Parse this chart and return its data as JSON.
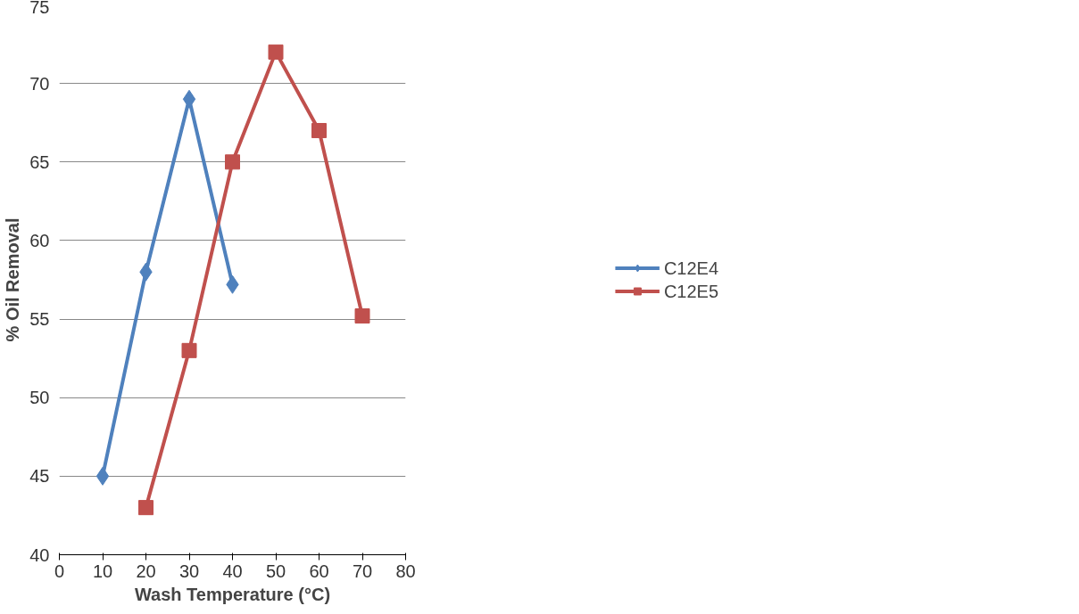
{
  "chart_data": {
    "type": "line",
    "xlabel": "Wash Temperature (°C)",
    "ylabel": "% Oil Removal",
    "xlim": [
      0,
      80
    ],
    "xticks": [
      0,
      10,
      20,
      30,
      40,
      50,
      60,
      70,
      80
    ],
    "ylim": [
      40,
      75
    ],
    "yticks": [
      40,
      45,
      50,
      55,
      60,
      65,
      70,
      75
    ],
    "grid": "y",
    "legend": "right",
    "line_style": "solid",
    "series": [
      {
        "name": "C12E4",
        "color": "#4f81bd",
        "marker": "diamond",
        "x": [
          10,
          20,
          30,
          40
        ],
        "values": [
          45,
          58,
          69,
          57.2
        ]
      },
      {
        "name": "C12E5",
        "color": "#c0504d",
        "marker": "square",
        "x": [
          20,
          30,
          40,
          50,
          60,
          70
        ],
        "values": [
          43,
          53,
          65,
          72,
          67,
          55.2
        ]
      }
    ]
  }
}
